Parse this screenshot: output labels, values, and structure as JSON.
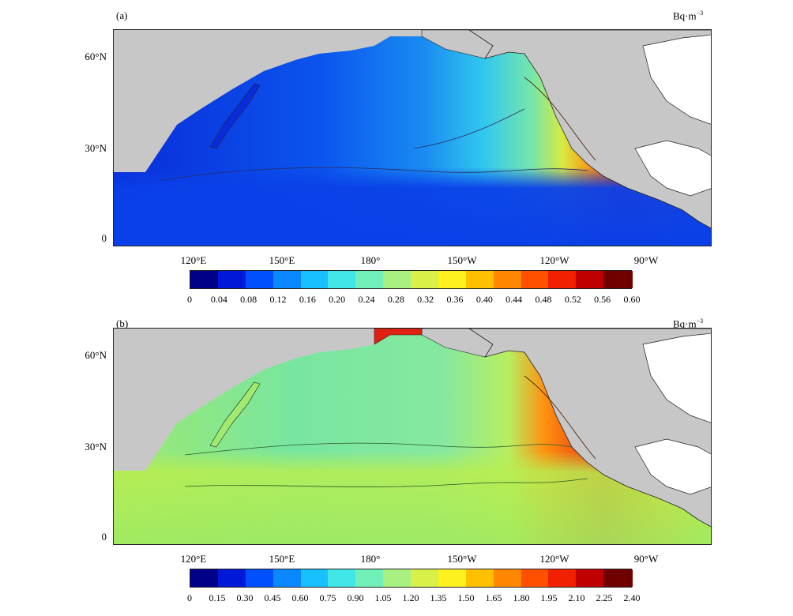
{
  "panels": [
    {
      "label": "(a)",
      "unit_base": "Bq·m",
      "unit_exp": "−3",
      "lat_labels": [
        "60°N",
        "30°N",
        "0"
      ],
      "lon_labels": [
        "120°E",
        "150°E",
        "180°",
        "150°W",
        "120°W",
        "90°W"
      ],
      "colorbar_ticks": [
        "0",
        "0.04",
        "0.08",
        "0.12",
        "0.16",
        "0.20",
        "0.24",
        "0.28",
        "0.32",
        "0.36",
        "0.40",
        "0.44",
        "0.48",
        "0.52",
        "0.56",
        "0.60"
      ]
    },
    {
      "label": "(b)",
      "unit_base": "Bq·m",
      "unit_exp": "−3",
      "lat_labels": [
        "60°N",
        "30°N",
        "0"
      ],
      "lon_labels": [
        "120°E",
        "150°E",
        "180°",
        "150°W",
        "120°W",
        "90°W"
      ],
      "colorbar_ticks": [
        "0",
        "0.15",
        "0.30",
        "0.45",
        "0.60",
        "0.75",
        "0.90",
        "1.05",
        "1.20",
        "1.35",
        "1.50",
        "1.65",
        "1.80",
        "1.95",
        "2.10",
        "2.25",
        "2.40"
      ]
    }
  ],
  "colors": {
    "land": "#c7c7c7",
    "scale": [
      "#000088",
      "#0018d8",
      "#0050ff",
      "#0b88ff",
      "#18c0ff",
      "#40e6e6",
      "#70f0b8",
      "#a8f080",
      "#d8f048",
      "#fff020",
      "#ffc000",
      "#ff8800",
      "#ff5000",
      "#f02000",
      "#c00000",
      "#700000"
    ]
  }
}
